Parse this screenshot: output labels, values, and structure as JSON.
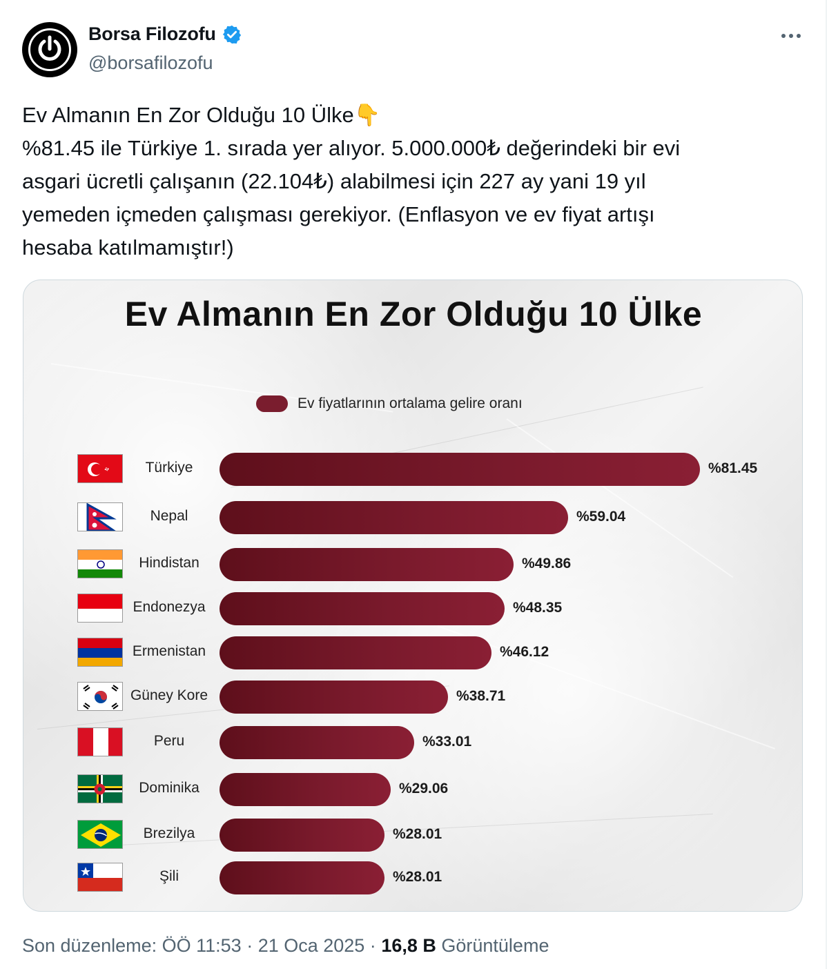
{
  "author": {
    "display_name": "Borsa Filozofu",
    "handle": "@borsafilozofu",
    "verified": true
  },
  "tweet": {
    "lines": [
      "Ev Almanın En Zor Olduğu 10 Ülke",
      "%81.45 ile Türkiye 1. sırada yer alıyor. 5.000.000₺ değerindeki bir evi",
      "asgari ücretli çalışanın (22.104₺) alabilmesi için 227 ay yani 19 yıl",
      "yemeden içmeden çalışması gerekiyor. (Enflasyon ve ev fiyat artışı",
      "hesaba katılmamıştır!)"
    ],
    "emoji": "👇"
  },
  "chart_data": {
    "type": "bar",
    "orientation": "horizontal",
    "title": "Ev Almanın En Zor Olduğu 10 Ülke",
    "legend": "Ev fiyatlarının ortalama gelire oranı",
    "categories": [
      "Türkiye",
      "Nepal",
      "Hindistan",
      "Endonezya",
      "Ermenistan",
      "Güney Kore",
      "Peru",
      "Dominika",
      "Brezilya",
      "Şili"
    ],
    "values": [
      81.45,
      59.04,
      49.86,
      48.35,
      46.12,
      38.71,
      33.01,
      29.06,
      28.01,
      28.01
    ],
    "labels": [
      "%81.45",
      "%59.04",
      "%49.86",
      "%48.35",
      "%46.12",
      "%38.71",
      "%33.01",
      "%29.06",
      "%28.01",
      "%28.01"
    ],
    "flags": [
      "turkey-flag",
      "nepal-flag",
      "india-flag",
      "indonesia-flag",
      "armenia-flag",
      "south-korea-flag",
      "peru-flag",
      "dominica-flag",
      "brazil-flag",
      "chile-flag"
    ],
    "bar_color": "#7a1d2e",
    "xlim": [
      0,
      81.45
    ]
  },
  "footer": {
    "edited": "Son düzenleme: ÖÖ 11:53 · 21 Oca 2025 · ",
    "views_count": "16,8 B",
    "views_label": " Görüntüleme"
  },
  "colors": {
    "text": "#0f1419",
    "secondary": "#536471",
    "verified": "#1d9bf0"
  }
}
